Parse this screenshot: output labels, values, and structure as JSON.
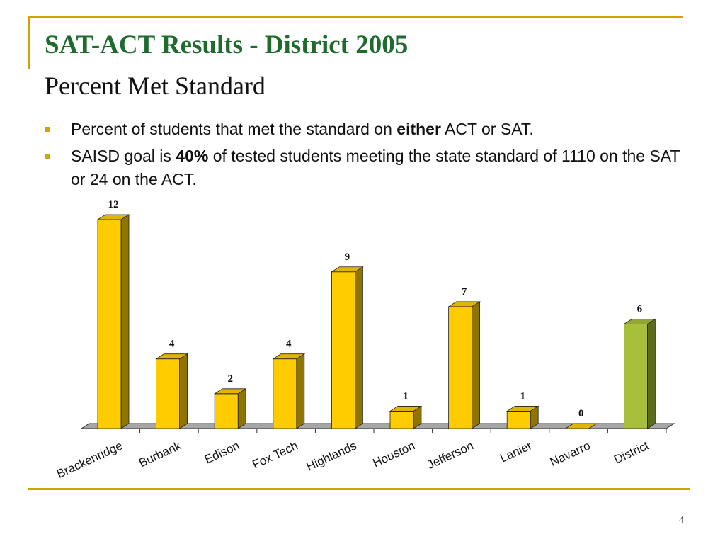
{
  "slide": {
    "title": "SAT-ACT Results - District 2005",
    "subtitle": "Percent Met Standard",
    "page_number": "4",
    "colors": {
      "title": "#1f6b2e",
      "frame": "#d3a200",
      "bullet_marker": "#d3a200",
      "bar_front": "#ffcc00",
      "bar_top": "#e0b400",
      "bar_side": "#8f7400",
      "district_front": "#a8bf3c",
      "district_top": "#93a532",
      "district_side": "#5d6b1d",
      "floor": "#a6a6a6"
    }
  },
  "bullets": [
    {
      "before": "Percent of students that met the standard on ",
      "bold": "either",
      "after": " ACT or SAT."
    },
    {
      "before": "SAISD goal is ",
      "bold": "40%",
      "after": " of tested students meeting the state standard of 1110 on the SAT or 24 on the ACT."
    }
  ],
  "chart_data": {
    "type": "bar",
    "title": "",
    "xlabel": "",
    "ylabel": "",
    "categories": [
      "Brackenridge",
      "Burbank",
      "Edison",
      "Fox Tech",
      "Highlands",
      "Houston",
      "Jefferson",
      "Lanier",
      "Navarro",
      "District"
    ],
    "values": [
      12,
      4,
      2,
      4,
      9,
      1,
      7,
      1,
      0,
      6
    ],
    "data_labels": [
      "12",
      "4",
      "2",
      "4",
      "9",
      "1",
      "7",
      "1",
      "0",
      "6"
    ],
    "highlight_category": "District",
    "ylim": [
      0,
      12
    ],
    "grid": false,
    "legend": false,
    "style": "3d"
  }
}
